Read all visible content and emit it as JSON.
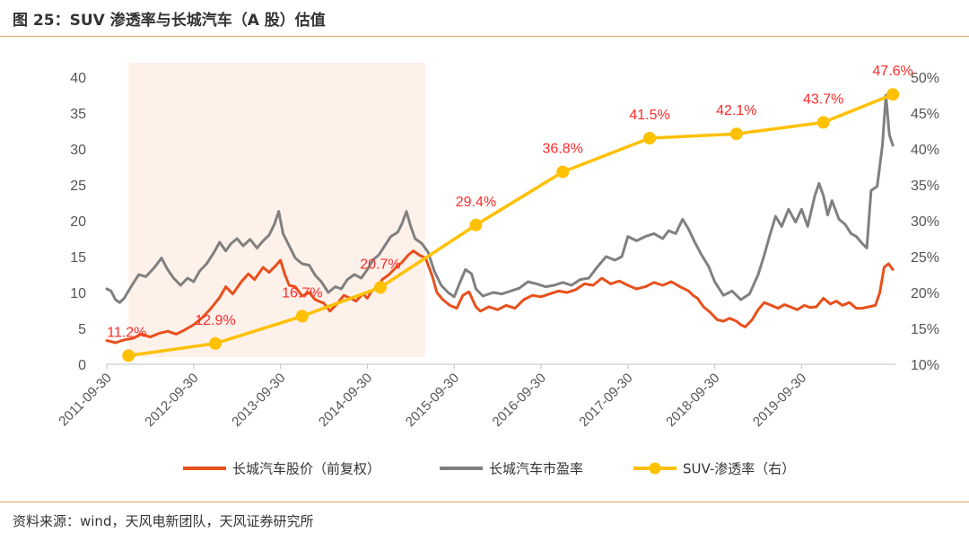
{
  "figure": {
    "title": "图 25：SUV 渗透率与长城汽车（A 股）估值",
    "source": "资料来源：wind，天风电新团队，天风证券研究所"
  },
  "chart_data": {
    "type": "line",
    "x_tick_labels": [
      "2011-09-30",
      "2012-09-30",
      "2013-09-30",
      "2014-09-30",
      "2015-09-30",
      "2016-09-30",
      "2017-09-30",
      "2018-09-30",
      "2019-09-30"
    ],
    "y_left": {
      "ticks": [
        0,
        5,
        10,
        15,
        20,
        25,
        30,
        35,
        40
      ],
      "ylim": [
        0,
        40
      ]
    },
    "y_right": {
      "ticks": [
        "10%",
        "15%",
        "20%",
        "25%",
        "30%",
        "35%",
        "40%",
        "45%",
        "50%"
      ],
      "ylim": [
        10,
        50
      ]
    },
    "highlight_period": [
      "2012-01",
      "2015-06"
    ],
    "series": [
      {
        "name": "长城汽车股价（前复权）",
        "axis": "left",
        "color": "#e8501c",
        "points": [
          [
            2011.75,
            3.3
          ],
          [
            2011.85,
            3.0
          ],
          [
            2011.95,
            3.4
          ],
          [
            2012.05,
            3.6
          ],
          [
            2012.15,
            4.2
          ],
          [
            2012.25,
            3.8
          ],
          [
            2012.35,
            4.3
          ],
          [
            2012.45,
            4.6
          ],
          [
            2012.55,
            4.2
          ],
          [
            2012.65,
            4.8
          ],
          [
            2012.75,
            5.5
          ],
          [
            2012.85,
            6.5
          ],
          [
            2012.95,
            7.8
          ],
          [
            2013.05,
            9.3
          ],
          [
            2013.12,
            10.8
          ],
          [
            2013.2,
            9.8
          ],
          [
            2013.3,
            11.5
          ],
          [
            2013.38,
            12.6
          ],
          [
            2013.45,
            11.8
          ],
          [
            2013.55,
            13.5
          ],
          [
            2013.62,
            12.8
          ],
          [
            2013.7,
            13.8
          ],
          [
            2013.75,
            14.5
          ],
          [
            2013.8,
            12.5
          ],
          [
            2013.85,
            11.0
          ],
          [
            2013.92,
            10.8
          ],
          [
            2014.0,
            9.5
          ],
          [
            2014.08,
            10.0
          ],
          [
            2014.15,
            9.0
          ],
          [
            2014.25,
            8.5
          ],
          [
            2014.32,
            7.4
          ],
          [
            2014.4,
            8.4
          ],
          [
            2014.48,
            9.6
          ],
          [
            2014.55,
            9.2
          ],
          [
            2014.62,
            8.8
          ],
          [
            2014.7,
            9.8
          ],
          [
            2014.75,
            9.2
          ],
          [
            2014.8,
            10.2
          ],
          [
            2014.86,
            10.6
          ],
          [
            2014.92,
            11.8
          ],
          [
            2015.0,
            12.5
          ],
          [
            2015.08,
            13.5
          ],
          [
            2015.15,
            14.2
          ],
          [
            2015.22,
            15.2
          ],
          [
            2015.28,
            15.8
          ],
          [
            2015.35,
            15.2
          ],
          [
            2015.42,
            14.8
          ],
          [
            2015.5,
            12.2
          ],
          [
            2015.55,
            10.0
          ],
          [
            2015.62,
            9.0
          ],
          [
            2015.7,
            8.2
          ],
          [
            2015.78,
            7.8
          ],
          [
            2015.85,
            9.6
          ],
          [
            2015.92,
            10.1
          ],
          [
            2016.0,
            8.0
          ],
          [
            2016.05,
            7.4
          ],
          [
            2016.15,
            8.0
          ],
          [
            2016.25,
            7.6
          ],
          [
            2016.35,
            8.2
          ],
          [
            2016.45,
            7.8
          ],
          [
            2016.55,
            9.0
          ],
          [
            2016.65,
            9.6
          ],
          [
            2016.75,
            9.4
          ],
          [
            2016.85,
            9.8
          ],
          [
            2016.95,
            10.2
          ],
          [
            2017.05,
            10.0
          ],
          [
            2017.15,
            10.4
          ],
          [
            2017.25,
            11.2
          ],
          [
            2017.35,
            11.0
          ],
          [
            2017.45,
            12.0
          ],
          [
            2017.55,
            11.2
          ],
          [
            2017.65,
            11.6
          ],
          [
            2017.75,
            11.0
          ],
          [
            2017.85,
            10.5
          ],
          [
            2017.95,
            10.8
          ],
          [
            2018.05,
            11.4
          ],
          [
            2018.15,
            11.0
          ],
          [
            2018.25,
            11.5
          ],
          [
            2018.35,
            10.8
          ],
          [
            2018.45,
            10.2
          ],
          [
            2018.5,
            9.6
          ],
          [
            2018.55,
            9.2
          ],
          [
            2018.62,
            8.0
          ],
          [
            2018.7,
            7.2
          ],
          [
            2018.78,
            6.2
          ],
          [
            2018.85,
            6.0
          ],
          [
            2018.92,
            6.4
          ],
          [
            2019.0,
            6.0
          ],
          [
            2019.05,
            5.5
          ],
          [
            2019.1,
            5.2
          ],
          [
            2019.18,
            6.2
          ],
          [
            2019.25,
            7.6
          ],
          [
            2019.32,
            8.6
          ],
          [
            2019.4,
            8.2
          ],
          [
            2019.48,
            7.8
          ],
          [
            2019.55,
            8.3
          ],
          [
            2019.62,
            8.0
          ],
          [
            2019.7,
            7.6
          ],
          [
            2019.78,
            8.2
          ],
          [
            2019.85,
            7.9
          ],
          [
            2019.92,
            8.0
          ],
          [
            2020.0,
            9.2
          ],
          [
            2020.08,
            8.4
          ],
          [
            2020.15,
            8.8
          ],
          [
            2020.22,
            8.2
          ],
          [
            2020.3,
            8.6
          ],
          [
            2020.38,
            7.8
          ],
          [
            2020.45,
            7.8
          ],
          [
            2020.52,
            8.0
          ],
          [
            2020.6,
            8.2
          ],
          [
            2020.65,
            10.0
          ],
          [
            2020.7,
            13.5
          ],
          [
            2020.75,
            14.0
          ],
          [
            2020.8,
            13.2
          ]
        ]
      },
      {
        "name": "长城汽车市盈率",
        "axis": "left",
        "color": "#808080",
        "points": [
          [
            2011.75,
            10.5
          ],
          [
            2011.8,
            10.2
          ],
          [
            2011.85,
            9.0
          ],
          [
            2011.9,
            8.6
          ],
          [
            2011.95,
            9.2
          ],
          [
            2012.05,
            11.2
          ],
          [
            2012.12,
            12.5
          ],
          [
            2012.2,
            12.2
          ],
          [
            2012.3,
            13.5
          ],
          [
            2012.38,
            14.8
          ],
          [
            2012.45,
            13.2
          ],
          [
            2012.52,
            12.0
          ],
          [
            2012.6,
            11.0
          ],
          [
            2012.68,
            12.0
          ],
          [
            2012.75,
            11.5
          ],
          [
            2012.82,
            13.0
          ],
          [
            2012.9,
            14.0
          ],
          [
            2012.98,
            15.5
          ],
          [
            2013.05,
            17.0
          ],
          [
            2013.12,
            15.8
          ],
          [
            2013.18,
            16.8
          ],
          [
            2013.25,
            17.5
          ],
          [
            2013.32,
            16.5
          ],
          [
            2013.4,
            17.4
          ],
          [
            2013.48,
            16.2
          ],
          [
            2013.55,
            17.2
          ],
          [
            2013.62,
            18.0
          ],
          [
            2013.68,
            19.5
          ],
          [
            2013.73,
            21.3
          ],
          [
            2013.78,
            18.2
          ],
          [
            2013.85,
            16.5
          ],
          [
            2013.92,
            14.8
          ],
          [
            2014.0,
            14.0
          ],
          [
            2014.08,
            13.8
          ],
          [
            2014.15,
            12.4
          ],
          [
            2014.22,
            11.5
          ],
          [
            2014.3,
            10.0
          ],
          [
            2014.38,
            10.8
          ],
          [
            2014.45,
            10.5
          ],
          [
            2014.52,
            11.8
          ],
          [
            2014.6,
            12.5
          ],
          [
            2014.68,
            12.0
          ],
          [
            2014.75,
            13.2
          ],
          [
            2014.82,
            14.6
          ],
          [
            2014.88,
            15.2
          ],
          [
            2014.95,
            16.5
          ],
          [
            2015.02,
            17.8
          ],
          [
            2015.1,
            18.4
          ],
          [
            2015.15,
            19.6
          ],
          [
            2015.2,
            21.3
          ],
          [
            2015.25,
            19.2
          ],
          [
            2015.3,
            17.5
          ],
          [
            2015.38,
            16.8
          ],
          [
            2015.45,
            15.6
          ],
          [
            2015.52,
            13.0
          ],
          [
            2015.6,
            11.0
          ],
          [
            2015.68,
            10.0
          ],
          [
            2015.75,
            9.4
          ],
          [
            2015.82,
            11.5
          ],
          [
            2015.88,
            13.2
          ],
          [
            2015.95,
            12.6
          ],
          [
            2016.0,
            10.5
          ],
          [
            2016.08,
            9.5
          ],
          [
            2016.2,
            10.0
          ],
          [
            2016.3,
            9.8
          ],
          [
            2016.4,
            10.2
          ],
          [
            2016.5,
            10.6
          ],
          [
            2016.6,
            11.5
          ],
          [
            2016.7,
            11.2
          ],
          [
            2016.8,
            10.8
          ],
          [
            2016.9,
            11.0
          ],
          [
            2017.0,
            11.4
          ],
          [
            2017.1,
            11.0
          ],
          [
            2017.2,
            11.8
          ],
          [
            2017.3,
            12.0
          ],
          [
            2017.4,
            13.6
          ],
          [
            2017.5,
            15.0
          ],
          [
            2017.6,
            14.5
          ],
          [
            2017.68,
            15.0
          ],
          [
            2017.75,
            17.8
          ],
          [
            2017.85,
            17.2
          ],
          [
            2017.95,
            17.8
          ],
          [
            2018.05,
            18.2
          ],
          [
            2018.15,
            17.5
          ],
          [
            2018.22,
            18.6
          ],
          [
            2018.3,
            18.2
          ],
          [
            2018.38,
            20.2
          ],
          [
            2018.45,
            18.8
          ],
          [
            2018.52,
            17.0
          ],
          [
            2018.6,
            15.2
          ],
          [
            2018.68,
            13.6
          ],
          [
            2018.75,
            11.5
          ],
          [
            2018.85,
            9.6
          ],
          [
            2018.95,
            10.2
          ],
          [
            2019.05,
            9.0
          ],
          [
            2019.15,
            9.8
          ],
          [
            2019.25,
            12.5
          ],
          [
            2019.32,
            15.2
          ],
          [
            2019.38,
            17.8
          ],
          [
            2019.45,
            20.6
          ],
          [
            2019.52,
            19.2
          ],
          [
            2019.6,
            21.6
          ],
          [
            2019.68,
            19.8
          ],
          [
            2019.75,
            21.6
          ],
          [
            2019.82,
            19.2
          ],
          [
            2019.9,
            23.4
          ],
          [
            2019.95,
            25.2
          ],
          [
            2020.0,
            23.5
          ],
          [
            2020.05,
            20.8
          ],
          [
            2020.1,
            22.8
          ],
          [
            2020.18,
            20.2
          ],
          [
            2020.25,
            19.5
          ],
          [
            2020.32,
            18.2
          ],
          [
            2020.38,
            17.8
          ],
          [
            2020.45,
            16.8
          ],
          [
            2020.5,
            16.2
          ],
          [
            2020.55,
            24.2
          ],
          [
            2020.62,
            24.8
          ],
          [
            2020.68,
            30.5
          ],
          [
            2020.72,
            37.5
          ],
          [
            2020.76,
            32.0
          ],
          [
            2020.8,
            30.5
          ]
        ]
      },
      {
        "name": "SUV-渗透率（右）",
        "axis": "right",
        "color": "#ffc000",
        "points": [
          [
            2012.0,
            11.2
          ],
          [
            2013.0,
            12.9
          ],
          [
            2014.0,
            16.7
          ],
          [
            2014.9,
            20.7
          ],
          [
            2016.0,
            29.4
          ],
          [
            2017.0,
            36.8
          ],
          [
            2018.0,
            41.5
          ],
          [
            2019.0,
            42.1
          ],
          [
            2020.0,
            43.7
          ],
          [
            2020.8,
            47.6
          ]
        ],
        "labels": [
          "11.2%",
          "12.9%",
          "16.7%",
          "20.7%",
          "29.4%",
          "36.8%",
          "41.5%",
          "42.1%",
          "43.7%",
          "47.6%"
        ]
      }
    ],
    "legend_position": "bottom"
  }
}
